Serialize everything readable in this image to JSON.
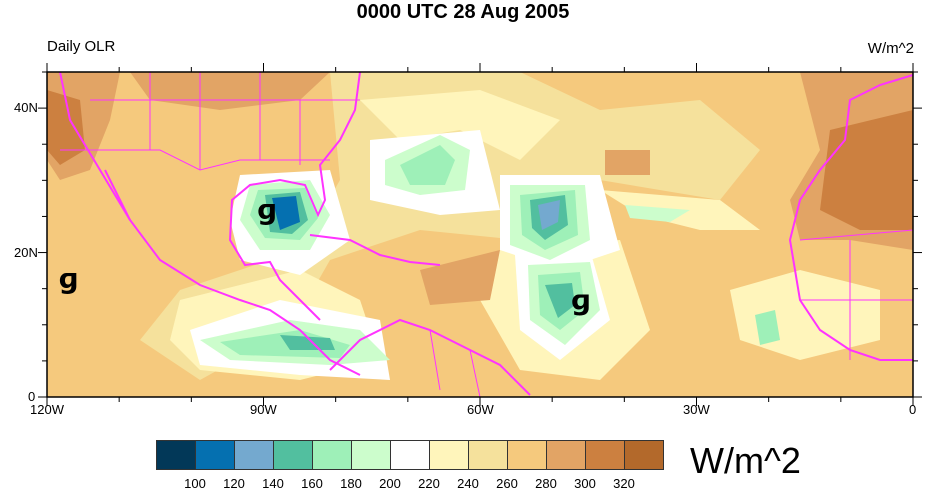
{
  "title": "0000 UTC 28 Aug 2005",
  "left_label": "Daily OLR",
  "right_label": "W/m^2",
  "x_ticks": [
    "120W",
    "90W",
    "60W",
    "30W",
    "0"
  ],
  "y_ticks": [
    "40N",
    "20N",
    "0"
  ],
  "colorbar": {
    "units": "W/m^2",
    "labels": [
      "100",
      "120",
      "140",
      "160",
      "180",
      "200",
      "220",
      "240",
      "260",
      "280",
      "300",
      "320"
    ],
    "colors": [
      "#023858",
      "#0570b0",
      "#74a9cf",
      "#52bf9f",
      "#9ef0b8",
      "#ccfdcc",
      "#ffffff",
      "#fff5bb",
      "#f5e19c",
      "#f5c97d",
      "#e2a465",
      "#cc8040",
      "#b3692b"
    ]
  },
  "storms": [
    {
      "lon": -89.5,
      "lat": 26
    },
    {
      "lon": -117,
      "lat": 16.5
    },
    {
      "lon": -46,
      "lat": 13.5
    }
  ],
  "domain": {
    "lon": [
      -120,
      0
    ],
    "lat": [
      0,
      45
    ]
  },
  "coast_color": "#ff33ff"
}
